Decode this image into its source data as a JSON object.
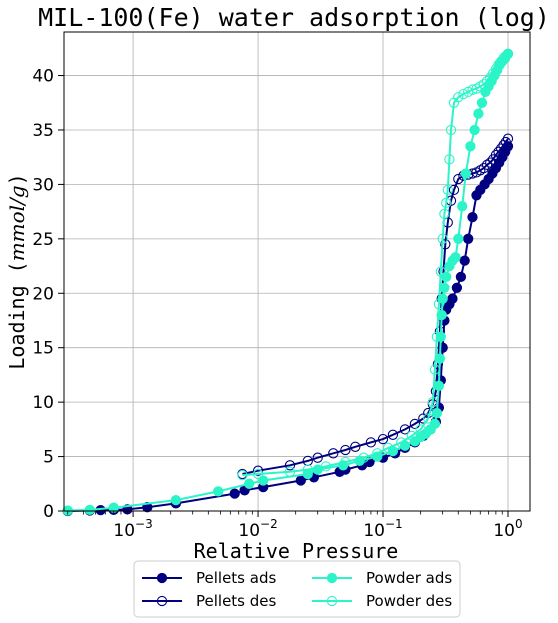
{
  "chart_data": {
    "type": "line",
    "title": "MIL-100(Fe) water adsorption (log)",
    "xlabel": "Relative Pressure",
    "ylabel": "Loading (mmol/g)",
    "x_scale": "log",
    "xlim": [
      0.00028,
      1.5
    ],
    "ylim": [
      0,
      44
    ],
    "x_ticks": [
      0.001,
      0.01,
      0.1,
      1
    ],
    "x_tick_labels": [
      {
        "base": "10",
        "exp": "−3"
      },
      {
        "base": "10",
        "exp": "−2"
      },
      {
        "base": "10",
        "exp": "−1"
      },
      {
        "base": "10",
        "exp": "0"
      }
    ],
    "y_ticks": [
      0,
      5,
      10,
      15,
      20,
      25,
      30,
      35,
      40
    ],
    "y_tick_labels": [
      "0",
      "5",
      "10",
      "15",
      "20",
      "25",
      "30",
      "35",
      "40"
    ],
    "grid": true,
    "legend": {
      "placement": "bottom-outside",
      "columns": 2
    },
    "series": [
      {
        "name": "Pellets ads",
        "color": "#000080",
        "marker": "filled",
        "x": [
          0.0003,
          0.00045,
          0.00055,
          0.0007,
          0.0009,
          0.0013,
          0.0022,
          0.0065,
          0.0078,
          0.011,
          0.022,
          0.028,
          0.045,
          0.05,
          0.068,
          0.078,
          0.1,
          0.125,
          0.15,
          0.18,
          0.21,
          0.24,
          0.265,
          0.28,
          0.29,
          0.3,
          0.31,
          0.32,
          0.34,
          0.36,
          0.39,
          0.42,
          0.45,
          0.48,
          0.52,
          0.56,
          0.6,
          0.65,
          0.7,
          0.75,
          0.8,
          0.85,
          0.9,
          0.95,
          1.0
        ],
        "y": [
          0.0,
          0.05,
          0.08,
          0.1,
          0.15,
          0.35,
          0.7,
          1.6,
          1.9,
          2.2,
          2.8,
          3.1,
          3.6,
          3.8,
          4.2,
          4.5,
          4.9,
          5.3,
          5.8,
          6.3,
          6.9,
          7.5,
          8.2,
          9.5,
          12.0,
          15.0,
          17.5,
          18.5,
          19.0,
          19.5,
          20.5,
          21.5,
          23.0,
          25.0,
          27.0,
          29.0,
          29.5,
          30.0,
          30.5,
          31.0,
          31.5,
          32.0,
          32.5,
          33.0,
          33.5
        ],
        "x_label_note": ""
      },
      {
        "name": "Pellets des",
        "color": "#000080",
        "marker": "open",
        "x": [
          1.0,
          0.96,
          0.92,
          0.88,
          0.84,
          0.8,
          0.76,
          0.72,
          0.68,
          0.64,
          0.6,
          0.56,
          0.52,
          0.48,
          0.44,
          0.4,
          0.37,
          0.35,
          0.33,
          0.315,
          0.305,
          0.295,
          0.285,
          0.275,
          0.265,
          0.25,
          0.23,
          0.21,
          0.18,
          0.15,
          0.12,
          0.1,
          0.08,
          0.06,
          0.05,
          0.04,
          0.03,
          0.025,
          0.018,
          0.01,
          0.0075
        ],
        "y": [
          34.2,
          33.9,
          33.6,
          33.3,
          33.0,
          32.7,
          32.3,
          32.0,
          31.8,
          31.5,
          31.3,
          31.1,
          31.0,
          30.9,
          30.8,
          30.5,
          29.5,
          28.5,
          26.5,
          24.5,
          22.0,
          19.5,
          16.5,
          13.5,
          11.0,
          9.8,
          9.0,
          8.5,
          8.0,
          7.5,
          7.0,
          6.6,
          6.3,
          5.9,
          5.6,
          5.3,
          4.9,
          4.6,
          4.2,
          3.7,
          3.4
        ]
      },
      {
        "name": "Powder ads",
        "color": "#2bf5c8",
        "marker": "filled",
        "x": [
          0.0003,
          0.00045,
          0.0007,
          0.0022,
          0.0048,
          0.0085,
          0.011,
          0.025,
          0.03,
          0.048,
          0.065,
          0.09,
          0.12,
          0.15,
          0.18,
          0.2,
          0.22,
          0.24,
          0.26,
          0.27,
          0.28,
          0.285,
          0.29,
          0.295,
          0.3,
          0.31,
          0.32,
          0.34,
          0.36,
          0.38,
          0.4,
          0.43,
          0.46,
          0.5,
          0.54,
          0.58,
          0.62,
          0.66,
          0.7,
          0.74,
          0.78,
          0.82,
          0.86,
          0.9,
          0.95,
          1.0
        ],
        "y": [
          0.05,
          0.1,
          0.3,
          1.0,
          1.8,
          2.5,
          2.8,
          3.4,
          3.8,
          4.2,
          4.6,
          5.0,
          5.5,
          6.0,
          6.4,
          6.8,
          7.1,
          7.5,
          8.0,
          9.0,
          11.5,
          14.0,
          16.0,
          18.0,
          19.5,
          20.5,
          21.5,
          22.5,
          23.0,
          23.3,
          25.0,
          28.0,
          31.0,
          33.5,
          35.0,
          36.5,
          37.5,
          38.5,
          39.0,
          39.5,
          40.0,
          40.5,
          41.0,
          41.3,
          41.6,
          42.0
        ]
      },
      {
        "name": "Powder des",
        "color": "#2bf5c8",
        "marker": "open",
        "x": [
          1.0,
          0.96,
          0.92,
          0.88,
          0.84,
          0.8,
          0.76,
          0.72,
          0.68,
          0.64,
          0.6,
          0.56,
          0.52,
          0.48,
          0.44,
          0.4,
          0.37,
          0.35,
          0.34,
          0.33,
          0.32,
          0.31,
          0.3,
          0.29,
          0.28,
          0.27,
          0.26,
          0.25,
          0.23,
          0.2,
          0.17,
          0.14,
          0.11,
          0.09,
          0.07,
          0.05,
          0.035,
          0.025,
          0.018,
          0.01,
          0.0075
        ],
        "y": [
          42.0,
          41.8,
          41.6,
          41.3,
          41.0,
          40.6,
          40.2,
          39.8,
          39.5,
          39.2,
          39.0,
          38.8,
          38.7,
          38.5,
          38.3,
          38.0,
          37.5,
          35.0,
          32.3,
          29.5,
          28.3,
          27.3,
          25.0,
          22.0,
          19.0,
          16.0,
          13.0,
          10.0,
          8.5,
          7.5,
          6.9,
          6.3,
          5.8,
          5.3,
          4.9,
          4.5,
          4.1,
          3.8,
          3.6,
          3.4,
          3.3
        ]
      }
    ]
  }
}
